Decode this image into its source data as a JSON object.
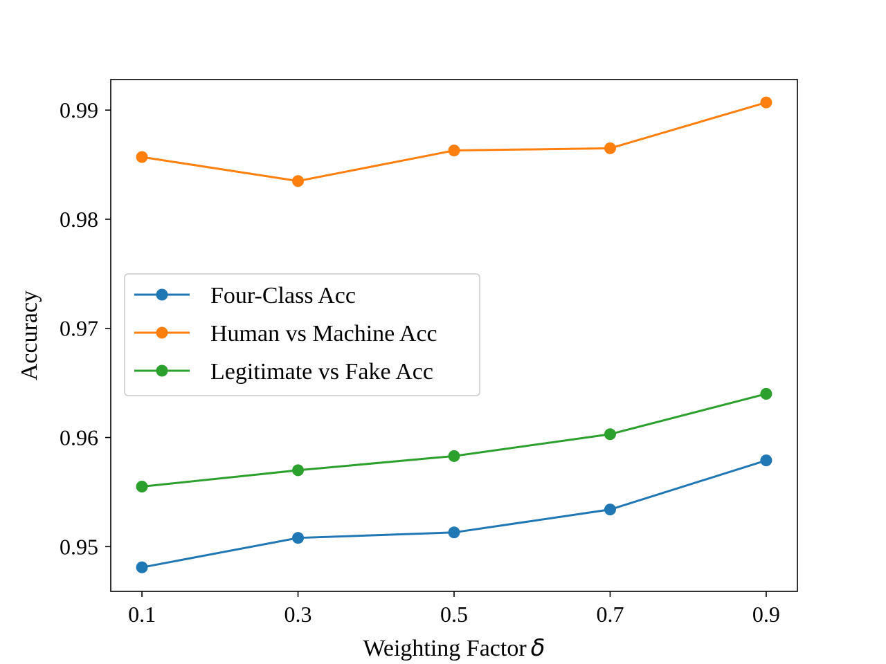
{
  "chart_data": {
    "type": "line",
    "title": "",
    "xlabel": "Weighting Factor",
    "xlabel_symbol": "δ",
    "ylabel": "Accuracy",
    "x": [
      0.1,
      0.3,
      0.5,
      0.7,
      0.9
    ],
    "x_tick_labels": [
      "0.1",
      "0.3",
      "0.5",
      "0.7",
      "0.9"
    ],
    "y_ticks": [
      0.95,
      0.96,
      0.97,
      0.98,
      0.99
    ],
    "y_tick_labels": [
      "0.95",
      "0.96",
      "0.97",
      "0.98",
      "0.99"
    ],
    "xlim": [
      0.06,
      0.94
    ],
    "ylim": [
      0.9459,
      0.9928
    ],
    "grid": false,
    "legend_position": "center-left",
    "series": [
      {
        "name": "Four-Class Acc",
        "color": "#1f77b4",
        "marker": "circle",
        "values": [
          0.9481,
          0.9508,
          0.9513,
          0.9534,
          0.9579
        ]
      },
      {
        "name": "Human vs Machine Acc",
        "color": "#ff7f0e",
        "marker": "circle",
        "values": [
          0.9857,
          0.9835,
          0.9863,
          0.9865,
          0.9907
        ]
      },
      {
        "name": "Legitimate vs Fake Acc",
        "color": "#2ca02c",
        "marker": "circle",
        "values": [
          0.9555,
          0.957,
          0.9583,
          0.9603,
          0.964
        ]
      }
    ]
  }
}
